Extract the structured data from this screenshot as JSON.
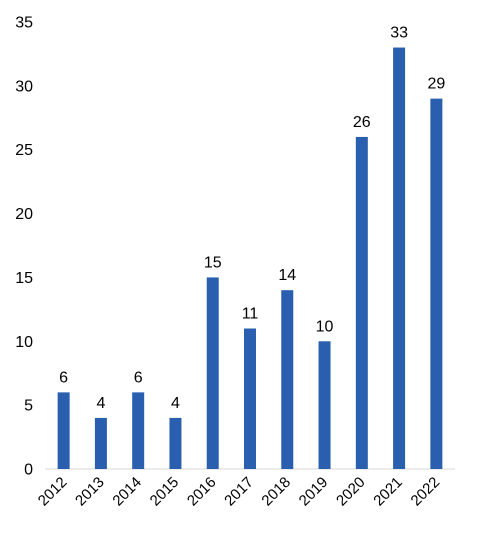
{
  "chart_data": {
    "type": "bar",
    "categories": [
      "2012",
      "2013",
      "2014",
      "2015",
      "2016",
      "2017",
      "2018",
      "2019",
      "2020",
      "2021",
      "2022"
    ],
    "values": [
      6,
      4,
      6,
      4,
      15,
      11,
      14,
      10,
      26,
      33,
      29
    ],
    "data_labels": [
      "6",
      "4",
      "6",
      "4",
      "15",
      "11",
      "14",
      "10",
      "26",
      "33",
      "29"
    ],
    "y_ticks": [
      "0",
      "5",
      "10",
      "15",
      "20",
      "25",
      "30",
      "35"
    ],
    "ylim": [
      0,
      35
    ],
    "grid": false,
    "legend": "none",
    "bar_color": "#2a5fb0",
    "axis_color": "#d9d9d9"
  }
}
